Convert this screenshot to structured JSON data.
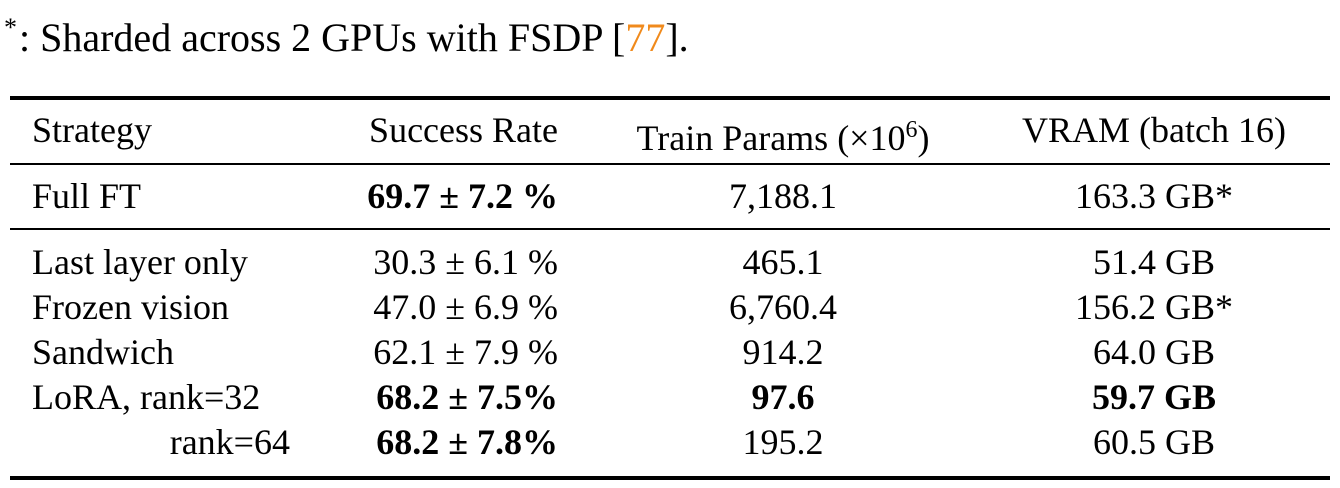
{
  "footnote": {
    "mark": "*",
    "text_before": ": Sharded across 2 GPUs with FSDP [",
    "citation": "77",
    "text_after": "]."
  },
  "colors": {
    "citation": "#f08a1c",
    "text": "#000000"
  },
  "table": {
    "headers": {
      "strategy": "Strategy",
      "success_rate": "Success Rate",
      "train_params": "Train Params (×10",
      "train_params_exp": "6",
      "train_params_close": ")",
      "vram": "VRAM (batch 16)"
    },
    "rows": [
      {
        "strategy": "Full FT",
        "success_rate": "69.7 ± 7.2 %",
        "train_params": "7,188.1",
        "vram": "163.3 GB*"
      },
      {
        "strategy": "Last layer only",
        "success_rate": "30.3 ± 6.1 %",
        "train_params": "465.1",
        "vram": "51.4 GB"
      },
      {
        "strategy": "Frozen vision",
        "success_rate": "47.0 ± 6.9 %",
        "train_params": "6,760.4",
        "vram": "156.2 GB*"
      },
      {
        "strategy": "Sandwich",
        "success_rate": "62.1 ± 7.9 %",
        "train_params": "914.2",
        "vram": "64.0 GB"
      },
      {
        "strategy": "LoRA, rank=32",
        "success_rate": "68.2 ± 7.5%",
        "train_params": "97.6",
        "vram": "59.7 GB"
      },
      {
        "strategy": "rank=64",
        "success_rate": "68.2 ± 7.8%",
        "train_params": "195.2",
        "vram": "60.5 GB"
      }
    ]
  }
}
